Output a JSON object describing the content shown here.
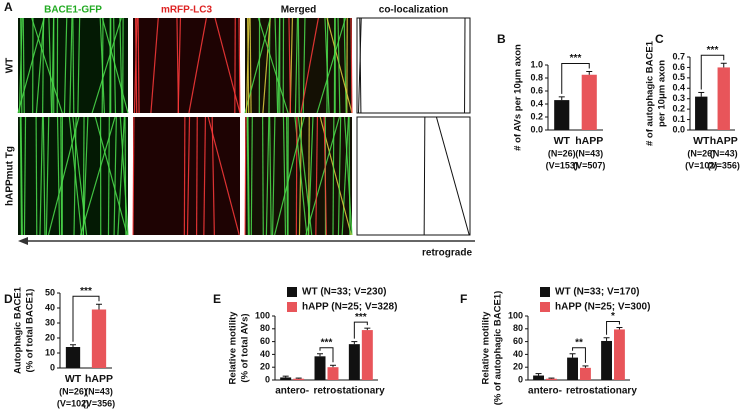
{
  "panel_a": {
    "letter": "A",
    "columns": [
      "BACE1-GFP",
      "mRFP-LC3",
      "Merged",
      "co-localization"
    ],
    "rows": [
      "WT",
      "hAPPmut Tg"
    ],
    "arrow_label": "retrograde"
  },
  "chart_data": [
    {
      "type": "bar",
      "title": "B",
      "ylabel": [
        "# of AVs per 10μm axon"
      ],
      "categories": [
        "WT",
        "hAPP"
      ],
      "category_sublabels": [
        [
          "(N=26)",
          "(V=153)"
        ],
        [
          "(N=43)",
          "(V=507)"
        ]
      ],
      "values": [
        0.46,
        0.85
      ],
      "errors": [
        0.05,
        0.05
      ],
      "colors": [
        "#111111",
        "#e8555a"
      ],
      "significance": "***",
      "ylim": [
        0,
        1.0
      ],
      "yticks": [
        {
          "value": 0,
          "label": "0.0"
        },
        0.2,
        0.4,
        0.6,
        0.8,
        {
          "value": 1.0,
          "label": "1.0"
        }
      ]
    },
    {
      "type": "bar",
      "title": "C",
      "ylabel": [
        "# of autophagic BACE1",
        "per 10μm axon"
      ],
      "categories": [
        "WT",
        "hAPP"
      ],
      "category_sublabels": [
        [
          "(N=26)",
          "(V=102)"
        ],
        [
          "(N=43)",
          "(V=356)"
        ]
      ],
      "values": [
        0.32,
        0.6
      ],
      "errors": [
        0.04,
        0.04
      ],
      "colors": [
        "#111111",
        "#e8555a"
      ],
      "significance": "***",
      "ylim": [
        0,
        0.7
      ],
      "yticks": [
        {
          "value": 0,
          "label": "0.0"
        },
        0.1,
        0.2,
        0.3,
        0.4,
        0.5,
        0.6,
        0.7
      ]
    },
    {
      "type": "bar",
      "title": "D",
      "ylabel": [
        "Autophagic BACE1",
        "(% of total BACE1)"
      ],
      "categories": [
        "WT",
        "hAPP"
      ],
      "category_sublabels": [
        [
          "(N=26)",
          "(V=102)"
        ],
        [
          "(N=43)",
          "(V=356)"
        ]
      ],
      "values": [
        14,
        39
      ],
      "errors": [
        1.5,
        3.5
      ],
      "colors": [
        "#111111",
        "#e8555a"
      ],
      "significance": "***",
      "ylim": [
        0,
        50
      ],
      "yticks": [
        0,
        10,
        20,
        30,
        40,
        50
      ]
    },
    {
      "type": "grouped_bar",
      "title": "E",
      "ylabel": [
        "Relative motility",
        "(% of total AVs)"
      ],
      "categories": [
        "antero-",
        "retro-",
        "stationary"
      ],
      "series": [
        {
          "name": "WT (N=33; V=230)",
          "color": "#111111",
          "values": [
            4,
            37,
            56
          ],
          "errors": [
            2,
            4,
            4
          ]
        },
        {
          "name": "hAPP (N=25; V=328)",
          "color": "#e8555a",
          "values": [
            2,
            20,
            78
          ],
          "errors": [
            1,
            3,
            3
          ]
        }
      ],
      "significance": [
        null,
        "***",
        "***"
      ],
      "ylim": [
        0,
        100
      ],
      "yticks": [
        0,
        20,
        40,
        60,
        80,
        100
      ]
    },
    {
      "type": "grouped_bar",
      "title": "F",
      "ylabel": [
        "Relative motility",
        "(% of autophagic BACE1)"
      ],
      "categories": [
        "antero-",
        "retro-",
        "stationary"
      ],
      "series": [
        {
          "name": "WT (N=33; V=170)",
          "color": "#111111",
          "values": [
            7,
            35,
            61
          ],
          "errors": [
            3,
            6,
            5
          ]
        },
        {
          "name": "hAPP (N=25; V=300)",
          "color": "#e8555a",
          "values": [
            2,
            19,
            79
          ],
          "errors": [
            1,
            3,
            3
          ]
        }
      ],
      "significance": [
        null,
        "**",
        "*"
      ],
      "ylim": [
        0,
        100
      ],
      "yticks": [
        0,
        20,
        40,
        60,
        80,
        100
      ]
    }
  ]
}
